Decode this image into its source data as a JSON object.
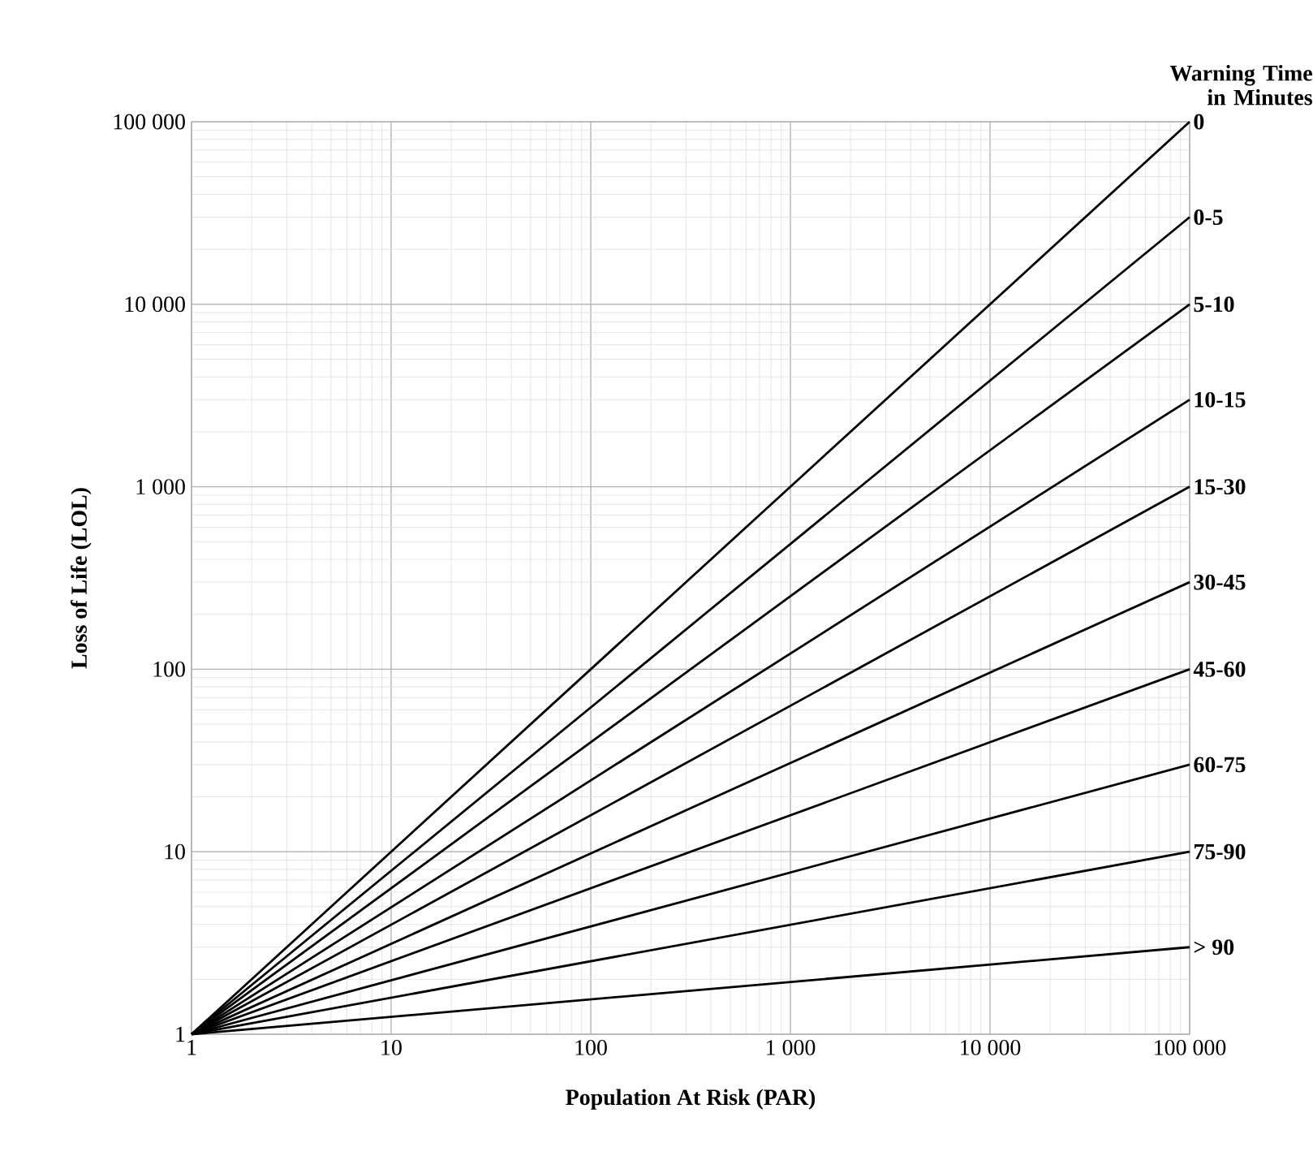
{
  "chart_data": {
    "type": "line",
    "xlabel": "Population At Risk (PAR)",
    "ylabel": "Loss of Life (LOL)",
    "legend_title": "Warning Time in Minutes",
    "log": "xy",
    "grid": true,
    "x": [
      1,
      100000
    ],
    "xlim": [
      1,
      100000
    ],
    "ylim": [
      1,
      100000
    ],
    "xticks": [
      1,
      10,
      100,
      {
        "value": 1000,
        "label": "1 000"
      },
      {
        "value": 10000,
        "label": "10 000"
      },
      {
        "value": 100000,
        "label": "100 000"
      }
    ],
    "yticks": [
      1,
      10,
      100,
      {
        "value": 1000,
        "label": "1 000"
      },
      {
        "value": 10000,
        "label": "10 000"
      },
      {
        "value": 100000,
        "label": "100 000"
      }
    ],
    "series": [
      {
        "name": "0",
        "color": "#000000",
        "values": [
          1,
          100000
        ]
      },
      {
        "name": "0-5",
        "color": "#000000",
        "values": [
          1,
          30000
        ]
      },
      {
        "name": "5-10",
        "color": "#000000",
        "values": [
          1,
          10000
        ]
      },
      {
        "name": "10-15",
        "color": "#000000",
        "values": [
          1,
          3000
        ]
      },
      {
        "name": "15-30",
        "color": "#000000",
        "values": [
          1,
          1000
        ]
      },
      {
        "name": "30-45",
        "color": "#000000",
        "values": [
          1,
          300
        ]
      },
      {
        "name": "45-60",
        "color": "#000000",
        "values": [
          1,
          100
        ]
      },
      {
        "name": "60-75",
        "color": "#000000",
        "values": [
          1,
          30
        ]
      },
      {
        "name": "75-90",
        "color": "#000000",
        "values": [
          1,
          10
        ]
      },
      {
        "name": "> 90",
        "color": "#000000",
        "values": [
          1,
          3
        ]
      }
    ]
  }
}
